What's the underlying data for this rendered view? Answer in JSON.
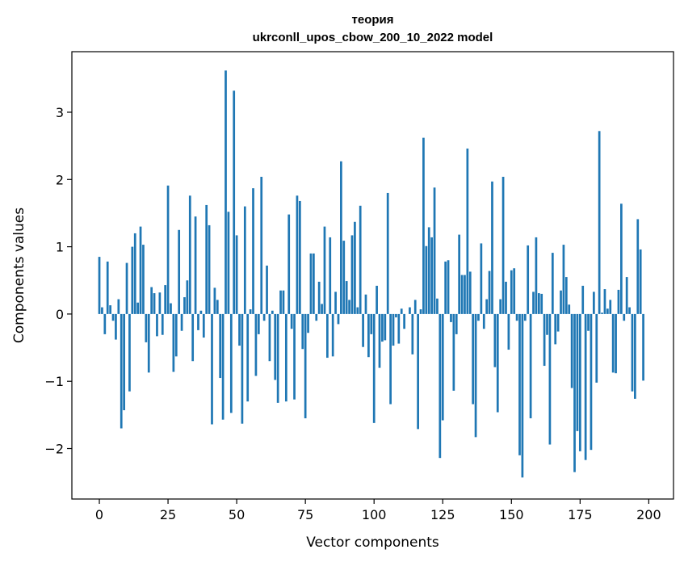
{
  "chart_data": {
    "type": "bar",
    "title_line1": "теория",
    "title_line2": "ukrconll_upos_cbow_200_10_2022 model",
    "xlabel": "Vector components",
    "ylabel": "Components values",
    "xlim": [
      -10,
      209
    ],
    "ylim": [
      -2.75,
      3.9
    ],
    "x_ticks": [
      0,
      25,
      50,
      75,
      100,
      125,
      150,
      175,
      200
    ],
    "x_tick_labels": [
      "0",
      "25",
      "50",
      "75",
      "100",
      "125",
      "150",
      "175",
      "200"
    ],
    "y_ticks": [
      -2,
      -1,
      0,
      1,
      2,
      3
    ],
    "y_tick_labels": [
      "−2",
      "−1",
      "0",
      "1",
      "2",
      "3"
    ],
    "grid": false,
    "bar_color": "#1f77b4",
    "values": [
      0.85,
      0.1,
      -0.3,
      0.78,
      0.13,
      -0.1,
      -0.38,
      0.22,
      -1.7,
      -1.43,
      0.76,
      -1.15,
      1.0,
      1.2,
      0.17,
      1.3,
      1.03,
      -0.42,
      -0.87,
      0.4,
      0.31,
      -0.33,
      0.32,
      -0.31,
      0.43,
      1.91,
      0.16,
      -0.86,
      -0.63,
      1.25,
      -0.25,
      0.25,
      0.5,
      1.76,
      -0.7,
      1.45,
      -0.24,
      0.05,
      -0.35,
      1.62,
      1.32,
      -1.64,
      0.39,
      0.21,
      -0.95,
      -1.57,
      3.62,
      1.52,
      -1.47,
      3.32,
      1.17,
      -0.47,
      -1.63,
      1.6,
      -1.3,
      0.07,
      1.87,
      -0.92,
      -0.3,
      2.04,
      -0.1,
      0.72,
      -0.7,
      0.05,
      -0.98,
      -1.32,
      0.35,
      0.35,
      -1.3,
      1.48,
      -0.22,
      -1.27,
      1.76,
      1.68,
      -0.52,
      -1.55,
      -0.28,
      0.9,
      0.9,
      -0.1,
      0.48,
      0.15,
      1.3,
      -0.65,
      1.14,
      -0.63,
      0.33,
      -0.15,
      2.27,
      1.09,
      0.49,
      0.21,
      1.17,
      1.37,
      0.1,
      1.61,
      -0.49,
      0.29,
      -0.64,
      -0.3,
      -1.62,
      0.42,
      -0.8,
      -0.41,
      -0.39,
      1.8,
      -1.34,
      -0.47,
      -0.05,
      -0.44,
      0.08,
      -0.22,
      0.0,
      0.1,
      -0.6,
      0.21,
      -1.71,
      0.07,
      2.62,
      1.01,
      1.29,
      1.14,
      1.88,
      0.23,
      -2.14,
      -1.58,
      0.78,
      0.8,
      -0.12,
      -1.14,
      -0.3,
      1.18,
      0.58,
      0.58,
      2.46,
      0.63,
      -1.34,
      -1.83,
      -0.1,
      1.05,
      -0.22,
      0.22,
      0.64,
      1.97,
      -0.79,
      -1.46,
      0.22,
      2.04,
      0.48,
      -0.53,
      0.65,
      0.68,
      -0.1,
      -2.1,
      -2.43,
      -0.1,
      1.02,
      -1.55,
      0.33,
      1.14,
      0.31,
      0.3,
      -0.77,
      -0.31,
      -1.94,
      0.91,
      -0.45,
      -0.26,
      0.35,
      1.03,
      0.55,
      0.14,
      -1.1,
      -2.35,
      -1.74,
      -2.04,
      0.42,
      -2.17,
      -0.25,
      -2.02,
      0.33,
      -1.02,
      2.72,
      0.02,
      0.37,
      0.08,
      0.21,
      -0.87,
      -0.88,
      0.36,
      1.64,
      -0.1,
      0.55,
      0.1,
      -1.15,
      -1.26,
      1.41,
      0.96,
      -0.99
    ]
  }
}
